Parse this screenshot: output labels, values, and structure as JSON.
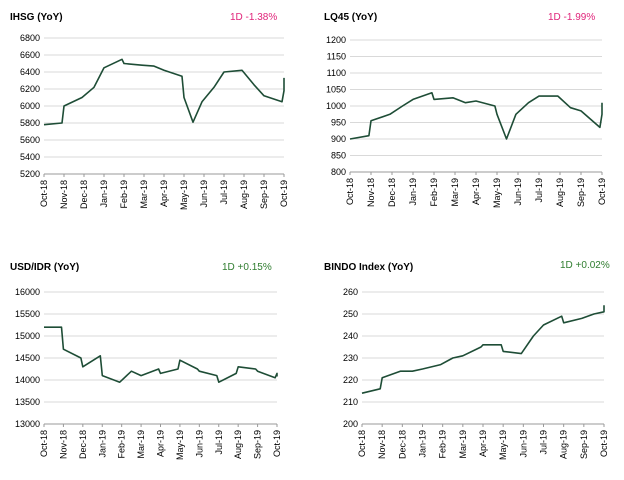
{
  "colors": {
    "line": "#1e4d36",
    "negative": "#e0247a",
    "positive": "#2f7d2f",
    "grid": "#d9d9d9"
  },
  "x_tick_labels": [
    "Oct-18",
    "Nov-18",
    "Dec-18",
    "Jan-19",
    "Feb-19",
    "Mar-19",
    "Apr-19",
    "May-19",
    "Jun-19",
    "Jul-19",
    "Aug-19",
    "Sep-19",
    "Oct-19"
  ],
  "chart_data": [
    {
      "type": "line",
      "title": "IHSG (YoY)",
      "change": "1D -1.38%",
      "change_sign": "negative",
      "ylim": [
        5200,
        6800
      ],
      "ystep": 200,
      "yticks": [
        "5200",
        "5400",
        "5600",
        "5800",
        "6000",
        "6200",
        "6400",
        "6600",
        "6800"
      ],
      "x_dates": [
        "Oct-18",
        "Oct-18",
        "Nov-18",
        "Nov-18",
        "Dec-18",
        "Jan-19",
        "Jan-19",
        "Feb-19",
        "Feb-19",
        "Mar-19",
        "Apr-19",
        "Apr-19",
        "May-19",
        "May-19",
        "May-19",
        "Jun-19",
        "Jul-19",
        "Jul-19",
        "Aug-19",
        "Sep-19",
        "Sep-19",
        "Oct-19",
        "Oct-19"
      ],
      "series": [
        {
          "values": [
            5780,
            5800,
            6000,
            6100,
            6220,
            6450,
            6550,
            6500,
            6480,
            6470,
            6420,
            6350,
            6100,
            5810,
            6050,
            6220,
            6400,
            6420,
            6250,
            6120,
            6050,
            6180,
            6330
          ]
        }
      ]
    },
    {
      "type": "line",
      "title": "LQ45 (YoY)",
      "change": "1D -1.99%",
      "change_sign": "negative",
      "ylim": [
        800,
        1200
      ],
      "ystep": 50,
      "yticks": [
        "800",
        "850",
        "900",
        "950",
        "1000",
        "1050",
        "1100",
        "1150",
        "1200"
      ],
      "x_dates": [
        "Oct-18",
        "Oct-18",
        "Nov-18",
        "Nov-18",
        "Dec-18",
        "Jan-19",
        "Jan-19",
        "Feb-19",
        "Feb-19",
        "Mar-19",
        "Apr-19",
        "Apr-19",
        "May-19",
        "May-19",
        "May-19",
        "Jun-19",
        "Jul-19",
        "Jul-19",
        "Aug-19",
        "Sep-19",
        "Sep-19",
        "Oct-19",
        "Oct-19"
      ],
      "series": [
        {
          "values": [
            900,
            910,
            955,
            975,
            1000,
            1020,
            1040,
            1020,
            1025,
            1010,
            1015,
            1000,
            975,
            900,
            975,
            1010,
            1030,
            1030,
            995,
            985,
            935,
            975,
            1010
          ]
        }
      ]
    },
    {
      "type": "line",
      "title": "USD/IDR  (YoY)",
      "change": "1D +0.15%",
      "change_sign": "positive",
      "ylim": [
        13000,
        16000
      ],
      "ystep": 500,
      "yticks": [
        "13000",
        "13500",
        "14000",
        "14500",
        "15000",
        "15500",
        "16000"
      ],
      "x_dates": [
        "Oct-18",
        "Oct-18",
        "Nov-18",
        "Nov-18",
        "Dec-18",
        "Dec-18",
        "Jan-19",
        "Jan-19",
        "Feb-19",
        "Mar-19",
        "Mar-19",
        "Apr-19",
        "Apr-19",
        "May-19",
        "May-19",
        "Jun-19",
        "Jun-19",
        "Jul-19",
        "Jul-19",
        "Aug-19",
        "Aug-19",
        "Sep-19",
        "Sep-19",
        "Oct-19",
        "Oct-19"
      ],
      "series": [
        {
          "values": [
            15200,
            15200,
            14700,
            14500,
            14300,
            14550,
            14100,
            13950,
            14200,
            14100,
            14250,
            14150,
            14250,
            14450,
            14250,
            14200,
            14100,
            13950,
            14150,
            14300,
            14250,
            14200,
            14050,
            14150,
            14080
          ]
        }
      ]
    },
    {
      "type": "line",
      "title": "BINDO Index (YoY)",
      "change": "1D +0.02%",
      "change_sign": "positive",
      "ylim": [
        200,
        260
      ],
      "ystep": 10,
      "yticks": [
        "200",
        "210",
        "220",
        "230",
        "240",
        "250",
        "260"
      ],
      "x_dates": [
        "Oct-18",
        "Oct-18",
        "Nov-18",
        "Nov-18",
        "Dec-18",
        "Jan-19",
        "Jan-19",
        "Feb-19",
        "Mar-19",
        "Mar-19",
        "Apr-19",
        "Apr-19",
        "May-19",
        "May-19",
        "Jun-19",
        "Jul-19",
        "Jul-19",
        "Aug-19",
        "Aug-19",
        "Sep-19",
        "Oct-19",
        "Oct-19"
      ],
      "series": [
        {
          "values": [
            214,
            216,
            221,
            224,
            224,
            225,
            227,
            230,
            231,
            235,
            236,
            236,
            233,
            232,
            240,
            245,
            249,
            246,
            248,
            250,
            251,
            254
          ]
        }
      ]
    }
  ]
}
